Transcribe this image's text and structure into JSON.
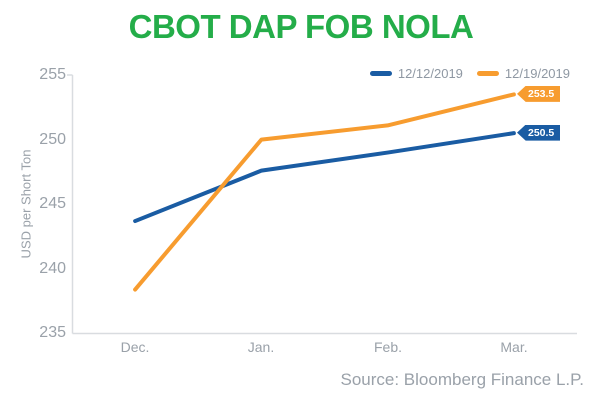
{
  "colors": {
    "title_green": "#24ad49",
    "axis_line": "#d9dce0",
    "tick_text": "#9aa1a9",
    "legend_text": "#8f98a3",
    "source_text": "#9aa1a9",
    "series_blue": "#1a5ca3",
    "series_orange": "#f79c2f"
  },
  "chart_data": {
    "type": "line",
    "title": "CBOT DAP FOB NOLA",
    "ylabel": "USD per Short Ton",
    "xlabel": "",
    "categories": [
      "Dec.",
      "Jan.",
      "Feb.",
      "Mar."
    ],
    "yticks": [
      "255",
      "250",
      "245",
      "240",
      "235"
    ],
    "ylim": [
      235,
      255
    ],
    "grid": false,
    "legend_position": "top-right",
    "series": [
      {
        "name": "12/12/2019",
        "color": "#1a5ca3",
        "values": [
          243.7,
          247.6,
          249.0,
          250.5
        ],
        "end_label": "250.5"
      },
      {
        "name": "12/19/2019",
        "color": "#f79c2f",
        "values": [
          238.4,
          250.0,
          251.1,
          253.5
        ],
        "end_label": "253.5"
      }
    ],
    "source": "Source: Bloomberg Finance L.P."
  }
}
